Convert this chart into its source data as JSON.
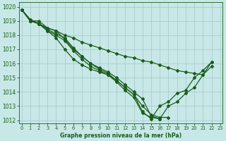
{
  "title": "Graphe pression niveau de la mer (hPa)",
  "background_color": "#c8e8e8",
  "grid_color": "#aacccc",
  "line_color": "#1a5c1a",
  "marker": "D",
  "marker_size": 2.0,
  "line_width": 0.9,
  "xlim": [
    -0.3,
    23.3
  ],
  "ylim": [
    1011.8,
    1020.3
  ],
  "yticks": [
    1012,
    1013,
    1014,
    1015,
    1016,
    1017,
    1018,
    1019,
    1020
  ],
  "xticks": [
    0,
    1,
    2,
    3,
    4,
    5,
    6,
    7,
    8,
    9,
    10,
    11,
    12,
    13,
    14,
    15,
    16,
    17,
    18,
    19,
    20,
    21,
    22,
    23
  ],
  "series": [
    [
      1019.8,
      1019.0,
      1019.0,
      1018.5,
      1018.3,
      1017.7,
      1017.0,
      1016.5,
      1016.0,
      1015.7,
      1015.4,
      1015.0,
      1014.5,
      1014.0,
      1013.5,
      1012.3,
      1012.1,
      1013.0,
      1013.3,
      1013.9,
      1014.3,
      1015.2,
      1015.8,
      null
    ],
    [
      1019.8,
      1019.0,
      1018.8,
      1018.3,
      1018.0,
      1017.6,
      1016.9,
      1016.3,
      1015.8,
      1015.5,
      1015.2,
      1014.7,
      1014.1,
      1013.6,
      1012.5,
      1012.2,
      1012.1,
      null,
      null,
      null,
      null,
      null,
      null,
      null
    ],
    [
      1019.8,
      1019.1,
      1018.8,
      1018.4,
      1018.1,
      1017.8,
      1017.1,
      1016.5,
      1016.0,
      1015.6,
      1015.3,
      1014.8,
      1014.3,
      1013.8,
      1013.0,
      1012.4,
      1012.2,
      1012.2,
      null,
      null,
      null,
      null,
      null,
      null
    ],
    [
      1019.8,
      1019.0,
      1018.8,
      1018.3,
      1017.8,
      1017.0,
      1016.3,
      1015.9,
      1015.6,
      1015.4,
      1015.2,
      1014.8,
      1014.3,
      1013.8,
      1012.6,
      1012.1,
      1013.0,
      1013.3,
      1013.9,
      1014.1,
      1015.0,
      1015.5,
      1016.1,
      null
    ]
  ],
  "series_flat": {
    "x": [
      0,
      1,
      2,
      3,
      4,
      5,
      6,
      7,
      8,
      9,
      10,
      11,
      12,
      13,
      14,
      15,
      16,
      17,
      18,
      19,
      20,
      21,
      22
    ],
    "y": [
      1019.8,
      1019.1,
      1018.8,
      1018.5,
      1018.3,
      1018.0,
      1017.8,
      1017.5,
      1017.3,
      1017.1,
      1016.9,
      1016.7,
      1016.5,
      1016.4,
      1016.2,
      1016.1,
      1015.9,
      1015.7,
      1015.5,
      1015.4,
      1015.3,
      1015.2,
      1016.1
    ]
  }
}
